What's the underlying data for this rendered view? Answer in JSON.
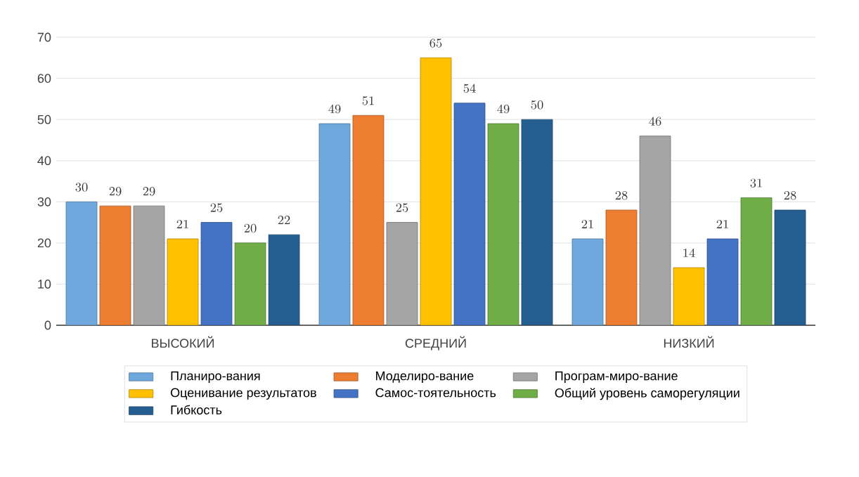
{
  "chart_data": {
    "type": "bar",
    "categories": [
      "ВЫСОКИЙ",
      "СРЕДНИЙ",
      "НИЗКИЙ"
    ],
    "series": [
      {
        "name": "Планиро-вания",
        "color": "#6fa8dc",
        "values": [
          30,
          49,
          21
        ]
      },
      {
        "name": "Моделиро-вание",
        "color": "#ed7d31",
        "values": [
          29,
          51,
          28
        ]
      },
      {
        "name": "Програм-миро-вание",
        "color": "#a5a5a5",
        "values": [
          29,
          25,
          46
        ]
      },
      {
        "name": "Оценивание результатов",
        "color": "#ffc000",
        "values": [
          21,
          65,
          14
        ]
      },
      {
        "name": "Самос-тоятельность",
        "color": "#4472c4",
        "values": [
          25,
          54,
          21
        ]
      },
      {
        "name": "Общий уровень саморегуляции",
        "color": "#70ad47",
        "values": [
          20,
          49,
          31
        ]
      },
      {
        "name": "Гибкость",
        "color": "#255e91",
        "values": [
          22,
          50,
          28
        ]
      }
    ],
    "ylim": [
      0,
      70
    ],
    "yticks": [
      0,
      10,
      20,
      30,
      40,
      50,
      60,
      70
    ],
    "grid": "y",
    "data_labels": true,
    "legend": "bottom"
  }
}
